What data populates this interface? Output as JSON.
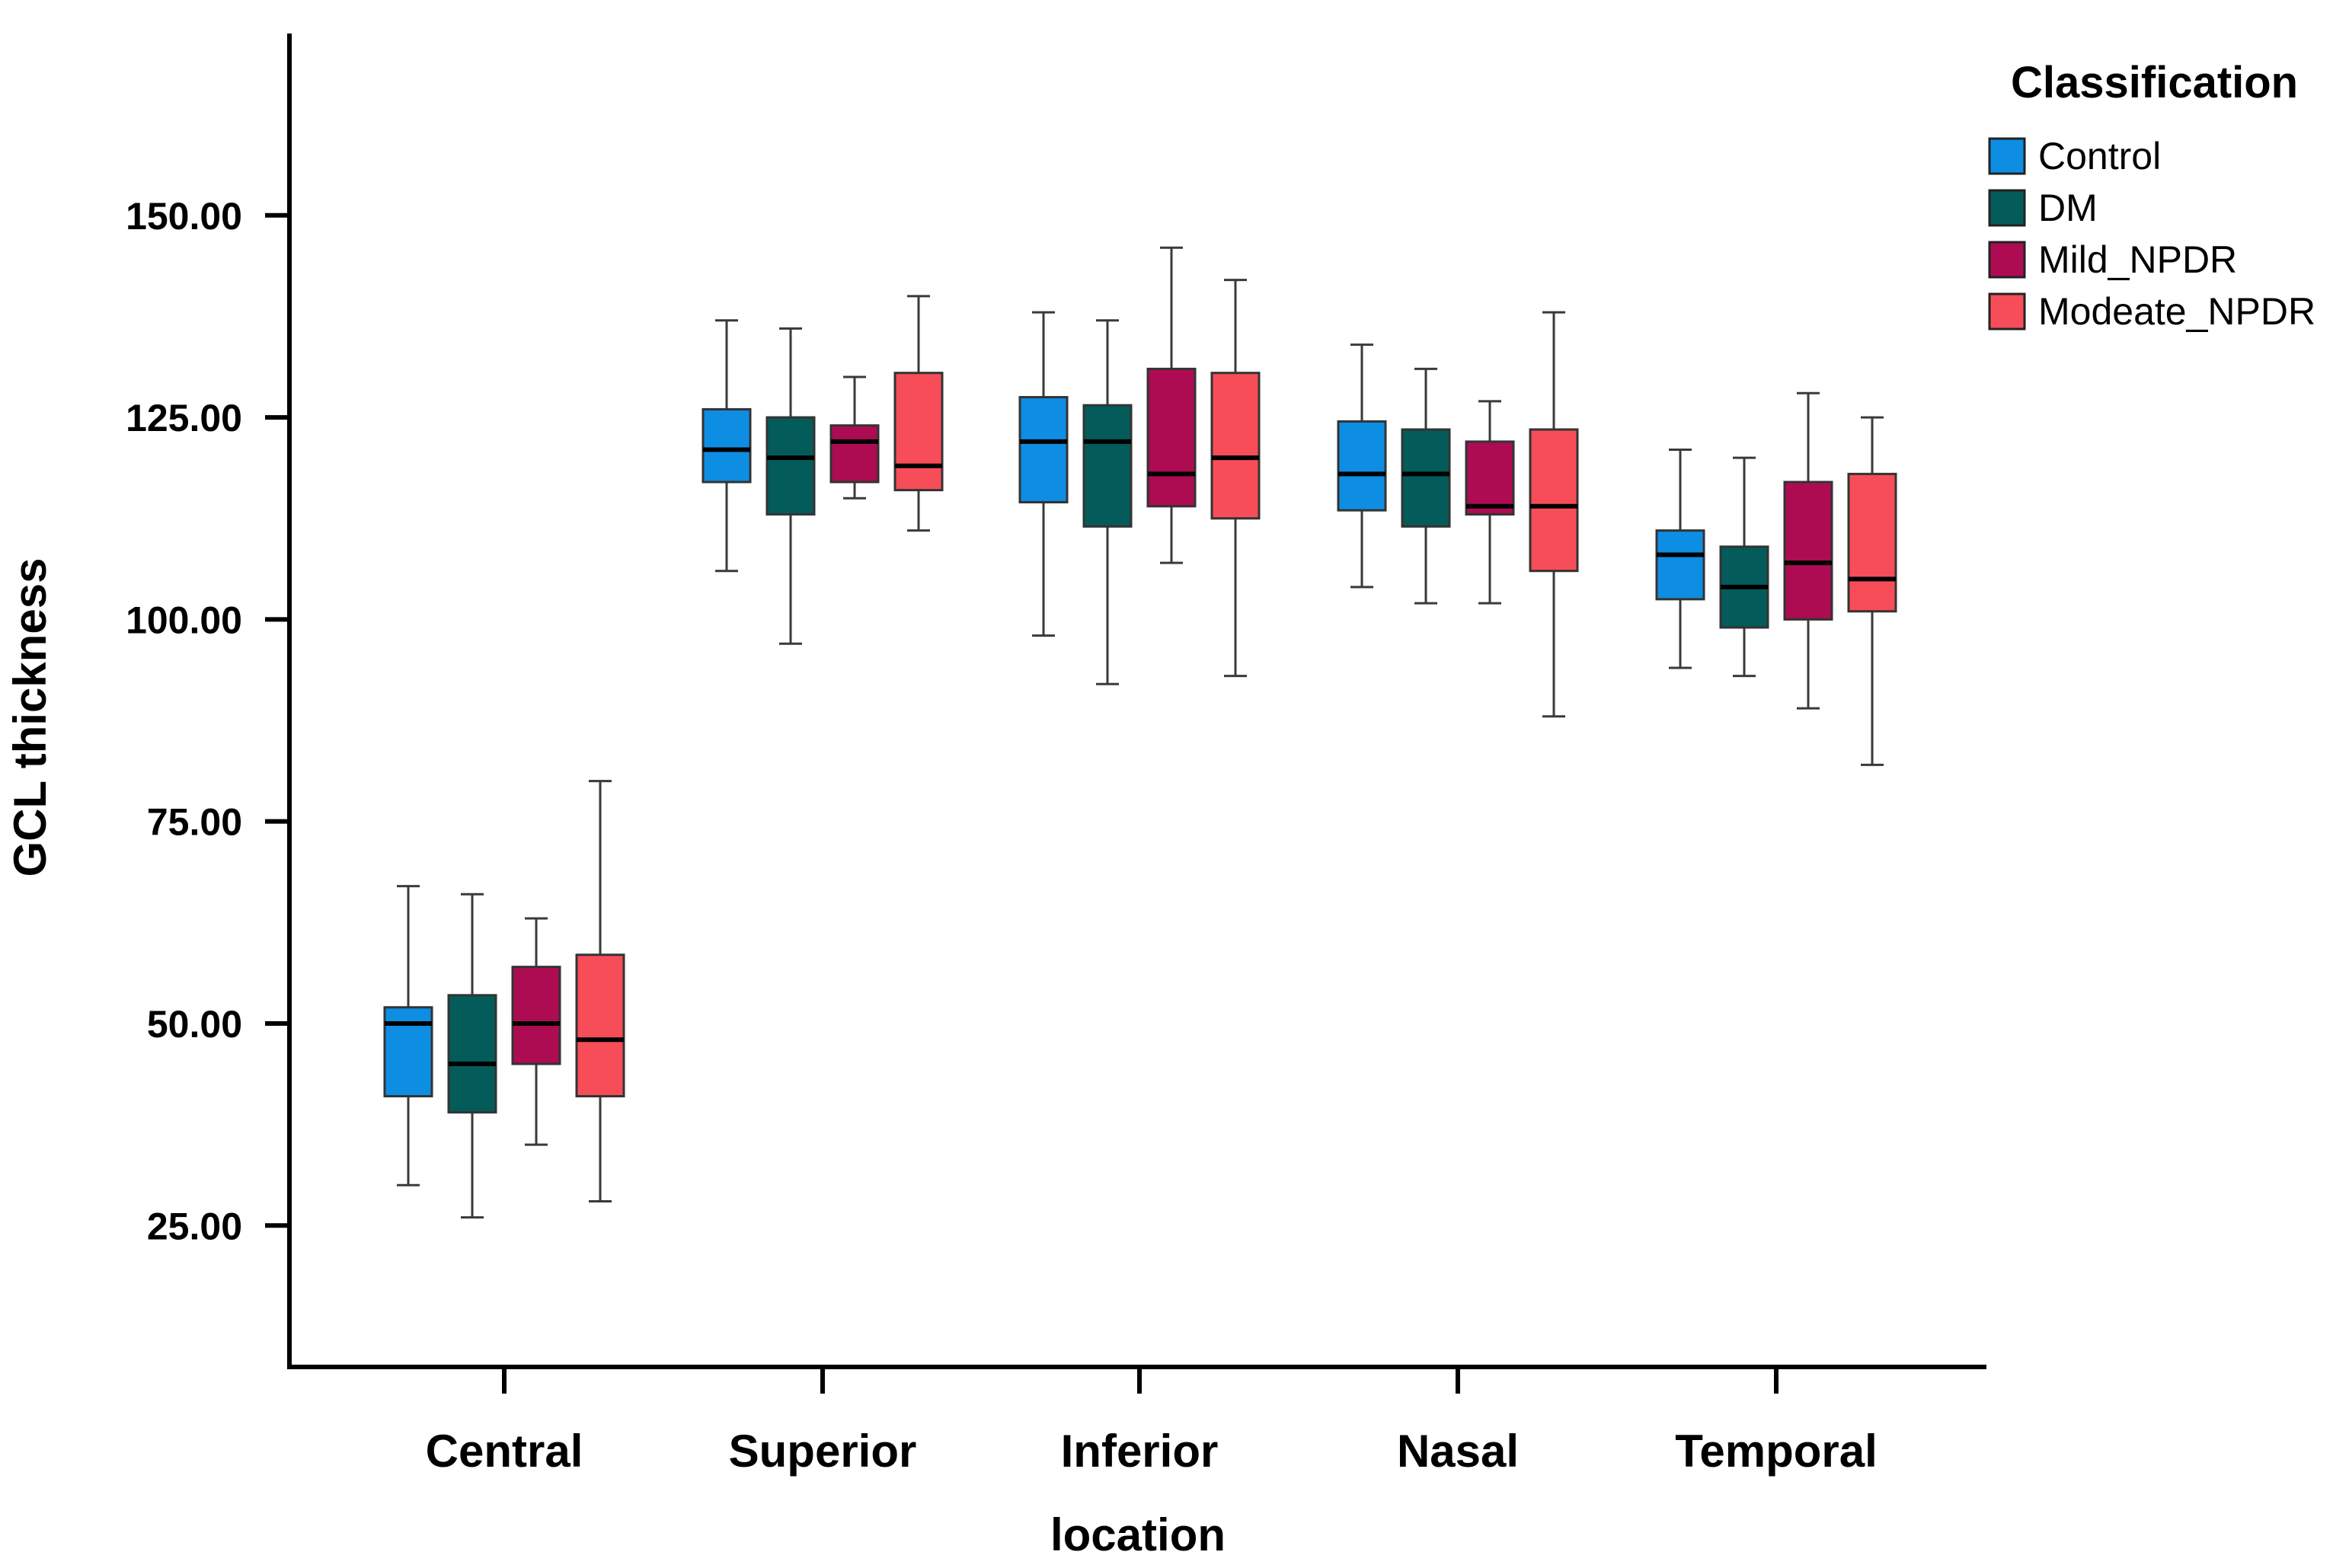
{
  "chart_data": {
    "type": "boxplot",
    "xlabel": "location",
    "ylabel": "GCL thickness",
    "ylim": [
      7.5,
      172.5
    ],
    "y_ticks": [
      25,
      50,
      75,
      100,
      125,
      150
    ],
    "y_tick_labels": [
      "25.00",
      "50.00",
      "75.00",
      "100.00",
      "125.00",
      "150.00"
    ],
    "categories": [
      "Central",
      "Superior",
      "Inferior",
      "Nasal",
      "Temporal"
    ],
    "legend": {
      "title": "Classification",
      "position": "top-right"
    },
    "series": [
      {
        "name": "Control",
        "color": "#0d8ee3",
        "boxes": [
          {
            "min": 30,
            "q1": 41,
            "median": 50,
            "q3": 52,
            "max": 67
          },
          {
            "min": 106,
            "q1": 117,
            "median": 121,
            "q3": 126,
            "max": 137
          },
          {
            "min": 98,
            "q1": 114.5,
            "median": 122,
            "q3": 127.5,
            "max": 138
          },
          {
            "min": 104,
            "q1": 113.5,
            "median": 118,
            "q3": 124.5,
            "max": 134
          },
          {
            "min": 94,
            "q1": 102.5,
            "median": 108,
            "q3": 111,
            "max": 121
          }
        ]
      },
      {
        "name": "DM",
        "color": "#035c59",
        "boxes": [
          {
            "min": 26,
            "q1": 39,
            "median": 45,
            "q3": 53.5,
            "max": 66
          },
          {
            "min": 97,
            "q1": 113,
            "median": 120,
            "q3": 125,
            "max": 136
          },
          {
            "min": 92,
            "q1": 111.5,
            "median": 122,
            "q3": 126.5,
            "max": 137
          },
          {
            "min": 102,
            "q1": 111.5,
            "median": 118,
            "q3": 123.5,
            "max": 131
          },
          {
            "min": 93,
            "q1": 99,
            "median": 104,
            "q3": 109,
            "max": 120
          }
        ]
      },
      {
        "name": "Mild_NPDR",
        "color": "#ad0c52",
        "boxes": [
          {
            "min": 35,
            "q1": 45,
            "median": 50,
            "q3": 57,
            "max": 63
          },
          {
            "min": 115,
            "q1": 117,
            "median": 122,
            "q3": 124,
            "max": 130
          },
          {
            "min": 107,
            "q1": 114,
            "median": 118,
            "q3": 131,
            "max": 146
          },
          {
            "min": 102,
            "q1": 113,
            "median": 114,
            "q3": 122,
            "max": 127
          },
          {
            "min": 89,
            "q1": 100,
            "median": 107,
            "q3": 117,
            "max": 128
          }
        ]
      },
      {
        "name": "Modeate_NPDR",
        "color": "#f74d59",
        "boxes": [
          {
            "min": 28,
            "q1": 41,
            "median": 48,
            "q3": 58.5,
            "max": 80
          },
          {
            "min": 111,
            "q1": 116,
            "median": 119,
            "q3": 130.5,
            "max": 140
          },
          {
            "min": 93,
            "q1": 112.5,
            "median": 120,
            "q3": 130.5,
            "max": 142
          },
          {
            "min": 88,
            "q1": 106,
            "median": 114,
            "q3": 123.5,
            "max": 138
          },
          {
            "min": 82,
            "q1": 101,
            "median": 105,
            "q3": 118,
            "max": 125
          }
        ]
      }
    ]
  }
}
